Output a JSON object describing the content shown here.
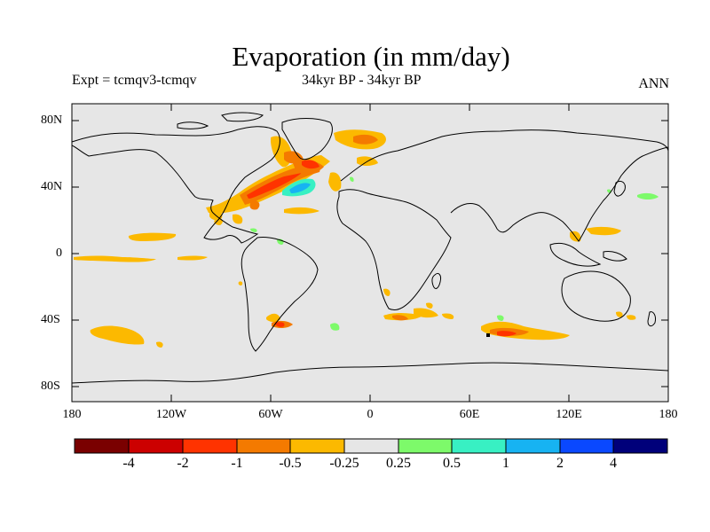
{
  "title": "Evaporation (in mm/day)",
  "subtitle_left": "Expt = tcmqv3-tcmqv",
  "subtitle_center": "34kyr BP - 34kyr BP",
  "subtitle_right": "ANN",
  "map": {
    "lat_ticks": [
      "80N",
      "40N",
      "0",
      "40S",
      "80S"
    ],
    "lon_ticks": [
      "180",
      "120W",
      "60W",
      "0",
      "60E",
      "120E",
      "180"
    ],
    "background_color": "#e6e6e6"
  },
  "colorbar": {
    "labels": [
      "-4",
      "-2",
      "-1",
      "-0.5",
      "-0.25",
      "0.25",
      "0.5",
      "1",
      "2",
      "4"
    ],
    "colors": [
      "#7a0000",
      "#cc0000",
      "#ff3300",
      "#f47a00",
      "#fcb900",
      "#e6e6e6",
      "#7dfa6a",
      "#38f0c3",
      "#17b3f2",
      "#0a48ff",
      "#00007a"
    ]
  }
}
